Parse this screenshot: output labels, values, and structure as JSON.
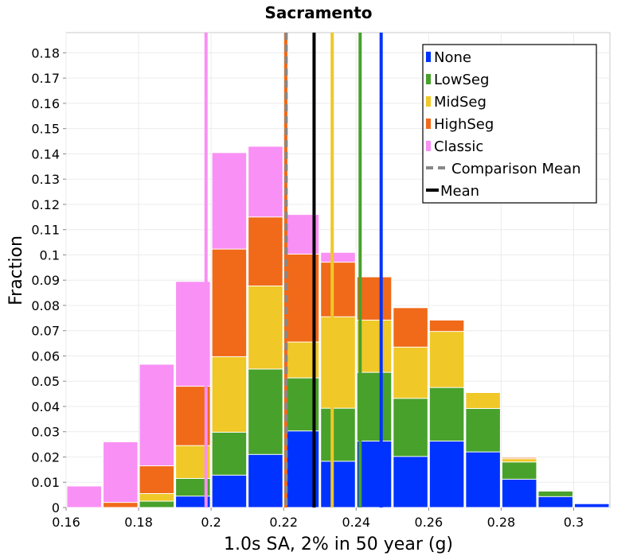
{
  "chart_data": {
    "type": "bar",
    "title": "Sacramento",
    "xlabel": "1.0s SA, 2% in 50 year (g)",
    "ylabel": "Fraction",
    "xlim": [
      0.16,
      0.31
    ],
    "ylim": [
      0,
      0.188
    ],
    "bin_width": 0.01,
    "stacked": true,
    "grid": true,
    "legend_position": "top-right",
    "x_ticks": [
      {
        "value": 0.16,
        "label": "0.16"
      },
      {
        "value": 0.18,
        "label": "0.18"
      },
      {
        "value": 0.2,
        "label": "0.2"
      },
      {
        "value": 0.22,
        "label": "0.22"
      },
      {
        "value": 0.24,
        "label": "0.24"
      },
      {
        "value": 0.26,
        "label": "0.26"
      },
      {
        "value": 0.28,
        "label": "0.28"
      },
      {
        "value": 0.3,
        "label": "0.3"
      }
    ],
    "y_ticks": [
      {
        "value": 0,
        "label": "0"
      },
      {
        "value": 0.01,
        "label": "0.01"
      },
      {
        "value": 0.02,
        "label": "0.02"
      },
      {
        "value": 0.03,
        "label": "0.03"
      },
      {
        "value": 0.04,
        "label": "0.04"
      },
      {
        "value": 0.05,
        "label": "0.05"
      },
      {
        "value": 0.06,
        "label": "0.06"
      },
      {
        "value": 0.07,
        "label": "0.07"
      },
      {
        "value": 0.08,
        "label": "0.08"
      },
      {
        "value": 0.09,
        "label": "0.09"
      },
      {
        "value": 0.1,
        "label": "0.1"
      },
      {
        "value": 0.11,
        "label": "0.11"
      },
      {
        "value": 0.12,
        "label": "0.12"
      },
      {
        "value": 0.13,
        "label": "0.13"
      },
      {
        "value": 0.14,
        "label": "0.14"
      },
      {
        "value": 0.15,
        "label": "0.15"
      },
      {
        "value": 0.16,
        "label": "0.16"
      },
      {
        "value": 0.17,
        "label": "0.17"
      },
      {
        "value": 0.18,
        "label": "0.18"
      }
    ],
    "bins": [
      {
        "x": 0.16,
        "None": 0,
        "LowSeg": 0,
        "MidSeg": 0,
        "HighSeg": 0,
        "Classic": 0.0085
      },
      {
        "x": 0.17,
        "None": 0,
        "LowSeg": 0,
        "MidSeg": 0,
        "HighSeg": 0.002,
        "Classic": 0.026
      },
      {
        "x": 0.18,
        "None": 0,
        "LowSeg": 0.0025,
        "MidSeg": 0.0055,
        "HighSeg": 0.0165,
        "Classic": 0.0567
      },
      {
        "x": 0.19,
        "None": 0.0045,
        "LowSeg": 0.0115,
        "MidSeg": 0.0245,
        "HighSeg": 0.048,
        "Classic": 0.0895
      },
      {
        "x": 0.2,
        "None": 0.0128,
        "LowSeg": 0.0298,
        "MidSeg": 0.0597,
        "HighSeg": 0.1023,
        "Classic": 0.1405
      },
      {
        "x": 0.21,
        "None": 0.021,
        "LowSeg": 0.0548,
        "MidSeg": 0.0877,
        "HighSeg": 0.115,
        "Classic": 0.143
      },
      {
        "x": 0.22,
        "None": 0.0303,
        "LowSeg": 0.0513,
        "MidSeg": 0.0655,
        "HighSeg": 0.1003,
        "Classic": 0.116
      },
      {
        "x": 0.23,
        "None": 0.0183,
        "LowSeg": 0.0393,
        "MidSeg": 0.0755,
        "HighSeg": 0.0971,
        "Classic": 0.101
      },
      {
        "x": 0.24,
        "None": 0.0263,
        "LowSeg": 0.0535,
        "MidSeg": 0.0742,
        "HighSeg": 0.0913,
        "Classic": 0.0913
      },
      {
        "x": 0.25,
        "None": 0.0202,
        "LowSeg": 0.0432,
        "MidSeg": 0.0635,
        "HighSeg": 0.0791,
        "Classic": 0.0791
      },
      {
        "x": 0.26,
        "None": 0.0263,
        "LowSeg": 0.0475,
        "MidSeg": 0.0697,
        "HighSeg": 0.0742,
        "Classic": 0.0742
      },
      {
        "x": 0.27,
        "None": 0.022,
        "LowSeg": 0.0392,
        "MidSeg": 0.0455,
        "HighSeg": 0.0455,
        "Classic": 0.0455
      },
      {
        "x": 0.28,
        "None": 0.0112,
        "LowSeg": 0.018,
        "MidSeg": 0.0193,
        "HighSeg": 0.0198,
        "Classic": 0.0198
      },
      {
        "x": 0.29,
        "None": 0.0043,
        "LowSeg": 0.0065,
        "MidSeg": 0.0065,
        "HighSeg": 0.0065,
        "Classic": 0.0065
      },
      {
        "x": 0.3,
        "None": 0.0015,
        "LowSeg": 0.0015,
        "MidSeg": 0.0015,
        "HighSeg": 0.0015,
        "Classic": 0.0015
      }
    ],
    "series": [
      {
        "name": "None",
        "color": "#0033ff",
        "mean": 0.2469
      },
      {
        "name": "LowSeg",
        "color": "#48a12b",
        "mean": 0.2411
      },
      {
        "name": "MidSeg",
        "color": "#f0c828",
        "mean": 0.2334
      },
      {
        "name": "HighSeg",
        "color": "#f06a19",
        "mean": 0.2206
      },
      {
        "name": "Classic",
        "color": "#f990f5",
        "mean": 0.1986
      }
    ],
    "comparison_mean": {
      "name": "Comparison Mean",
      "value": 0.2207,
      "color": "#888888",
      "style": "dashed"
    },
    "mean": {
      "name": "Mean",
      "value": 0.2284,
      "color": "#000000",
      "style": "solid"
    }
  }
}
